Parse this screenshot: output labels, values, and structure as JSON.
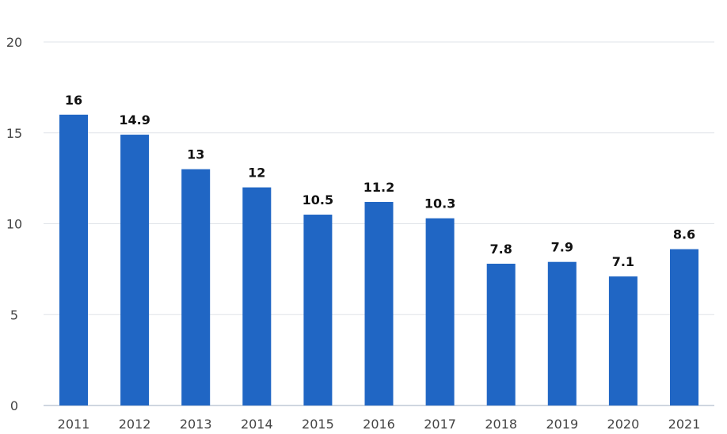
{
  "chart_data": {
    "type": "bar",
    "categories": [
      "2011",
      "2012",
      "2013",
      "2014",
      "2015",
      "2016",
      "2017",
      "2018",
      "2019",
      "2020",
      "2021"
    ],
    "values": [
      16,
      14.9,
      13,
      12,
      10.5,
      11.2,
      10.3,
      7.8,
      7.9,
      7.1,
      8.6
    ],
    "value_labels": [
      "16",
      "14.9",
      "13",
      "12",
      "10.5",
      "11.2",
      "10.3",
      "7.8",
      "7.9",
      "7.1",
      "8.6"
    ],
    "title": "",
    "xlabel": "",
    "ylabel": "",
    "ylim": [
      0,
      20
    ],
    "yticks": [
      "0",
      "5",
      "10",
      "15",
      "20"
    ],
    "grid": true,
    "legend": "none",
    "colors": {
      "bar": "#2066c4",
      "grid": "#dfe3e8",
      "tick_text": "#444444",
      "label_text": "#111111"
    }
  }
}
